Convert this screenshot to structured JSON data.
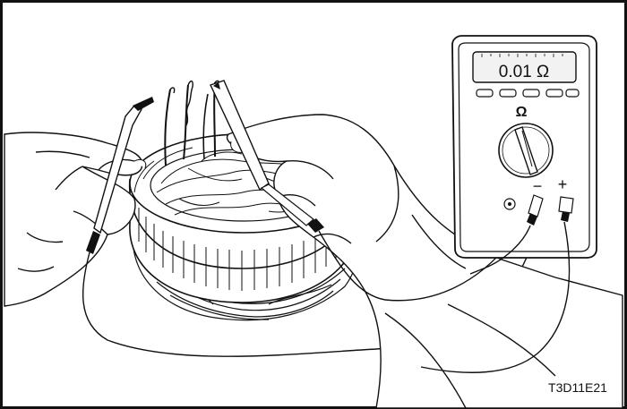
{
  "meter": {
    "reading": "0.01 Ω",
    "function_symbol": "Ω",
    "minus_label": "−",
    "plus_label": "+"
  },
  "figure_code": "T3D11E21",
  "colors": {
    "ink": "#111111",
    "paper": "#ffffff",
    "display": "#f2f2f2"
  },
  "icons": [
    "stator-winding-icon",
    "multimeter-icon",
    "test-probe-icon",
    "hand-icon"
  ]
}
